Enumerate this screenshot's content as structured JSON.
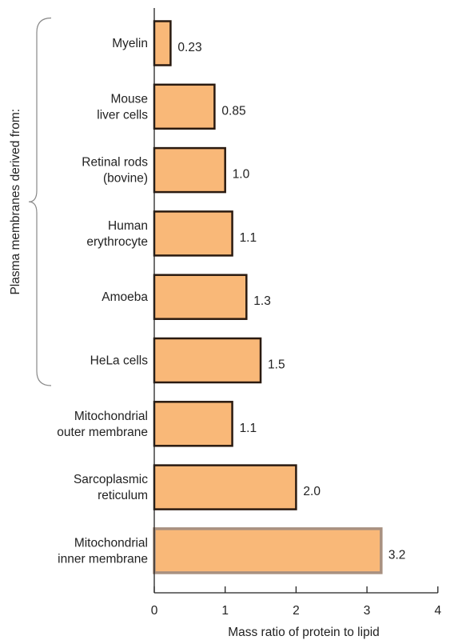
{
  "chart_data": {
    "type": "bar",
    "orientation": "horizontal",
    "categories": [
      [
        "Myelin"
      ],
      [
        "Mouse",
        "liver cells"
      ],
      [
        "Retinal rods",
        "(bovine)"
      ],
      [
        "Human",
        "erythrocyte"
      ],
      [
        "Amoeba"
      ],
      [
        "HeLa cells"
      ],
      [
        "Mitochondrial",
        "outer membrane"
      ],
      [
        "Sarcoplasmic",
        "reticulum"
      ],
      [
        "Mitochondrial",
        "inner membrane"
      ]
    ],
    "values": [
      0.23,
      0.85,
      1.0,
      1.1,
      1.3,
      1.5,
      1.1,
      2.0,
      3.2
    ],
    "value_labels": [
      "0.23",
      "0.85",
      "1.0",
      "1.1",
      "1.3",
      "1.5",
      "1.1",
      "2.0",
      "3.2"
    ],
    "xlabel": "Mass ratio of protein to lipid",
    "xlim": [
      0,
      4
    ],
    "xticks": [
      "0",
      "1",
      "2",
      "3",
      "4"
    ],
    "group_label": "Plasma membranes derived from:",
    "group_range": [
      0,
      5
    ],
    "grid": false,
    "bar_color": "#F9B878",
    "bar_edge_color": "#2a1a10",
    "highlight_edge_color": "#a89080"
  }
}
